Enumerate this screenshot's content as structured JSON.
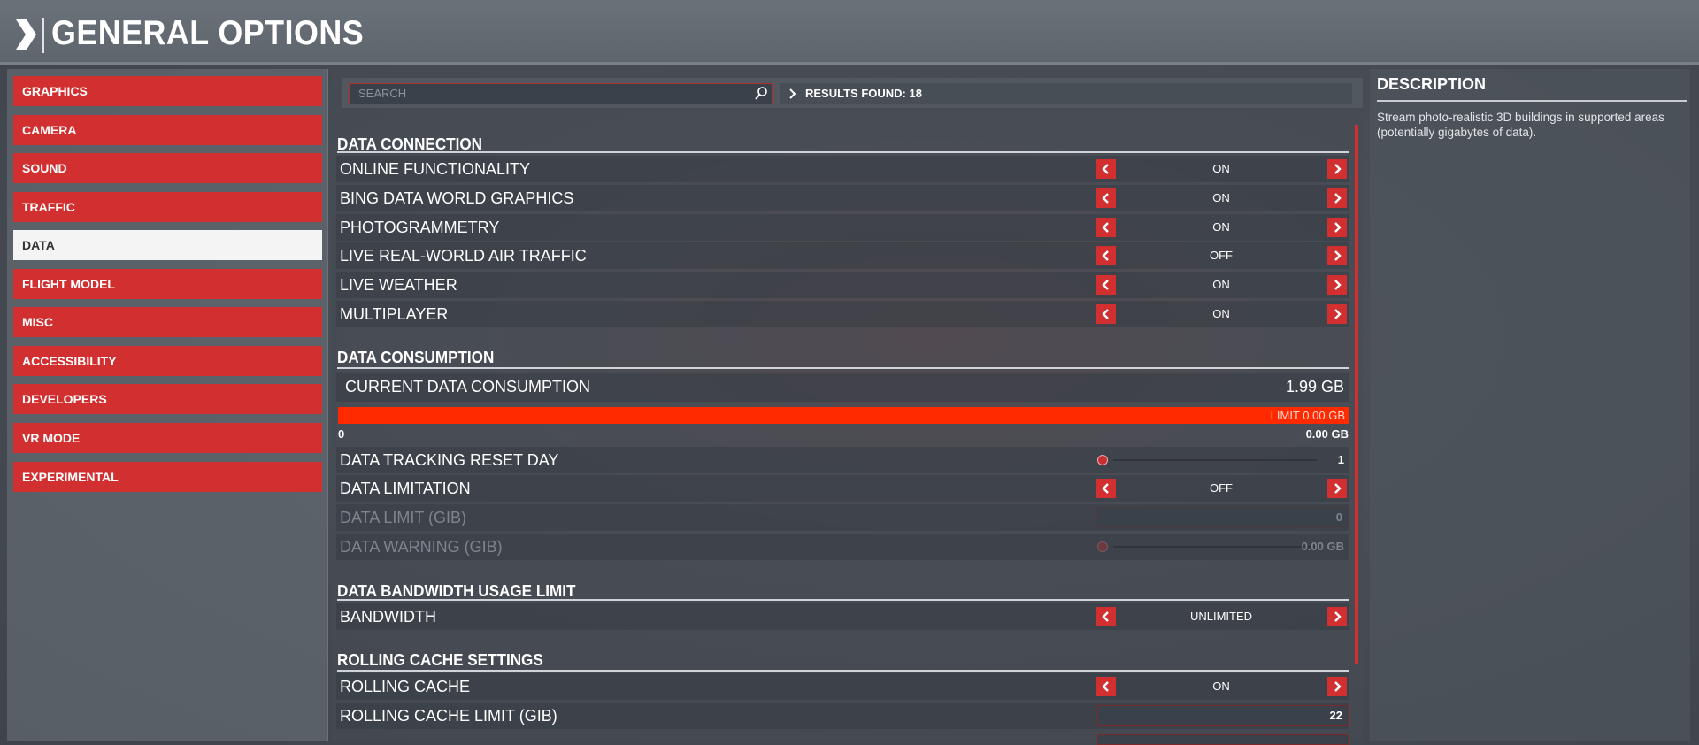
{
  "header": {
    "title": "GENERAL OPTIONS"
  },
  "sidebar": {
    "items": [
      {
        "label": "GRAPHICS",
        "active": false
      },
      {
        "label": "CAMERA",
        "active": false
      },
      {
        "label": "SOUND",
        "active": false
      },
      {
        "label": "TRAFFIC",
        "active": false
      },
      {
        "label": "DATA",
        "active": true
      },
      {
        "label": "FLIGHT MODEL",
        "active": false
      },
      {
        "label": "MISC",
        "active": false
      },
      {
        "label": "ACCESSIBILITY",
        "active": false
      },
      {
        "label": "DEVELOPERS",
        "active": false
      },
      {
        "label": "VR MODE",
        "active": false
      },
      {
        "label": "EXPERIMENTAL",
        "active": false
      }
    ]
  },
  "search": {
    "placeholder": "SEARCH",
    "results": "RESULTS FOUND: 18"
  },
  "colors": {
    "accent": "#d23030",
    "bar": "#ff2a00"
  },
  "sections": [
    {
      "title": "DATA CONNECTION",
      "rows": [
        {
          "type": "toggle",
          "label": "ONLINE FUNCTIONALITY",
          "value": "ON"
        },
        {
          "type": "toggle",
          "label": "BING DATA WORLD GRAPHICS",
          "value": "ON"
        },
        {
          "type": "toggle",
          "label": "PHOTOGRAMMETRY",
          "value": "ON"
        },
        {
          "type": "toggle",
          "label": "LIVE REAL-WORLD AIR TRAFFIC",
          "value": "OFF"
        },
        {
          "type": "toggle",
          "label": "LIVE WEATHER",
          "value": "ON"
        },
        {
          "type": "toggle",
          "label": "MULTIPLAYER",
          "value": "ON"
        }
      ]
    },
    {
      "title": "DATA CONSUMPTION",
      "rows": [
        {
          "type": "consumption",
          "label": "CURRENT DATA CONSUMPTION",
          "value": "1.99 GB",
          "limit": "LIMIT 0.00 GB",
          "min": "0",
          "max": "0.00 GB",
          "fill_percent": 100
        },
        {
          "type": "slider",
          "label": "DATA TRACKING RESET DAY",
          "value": "1"
        },
        {
          "type": "toggle",
          "label": "DATA LIMITATION",
          "value": "OFF"
        },
        {
          "type": "input",
          "label": "DATA LIMIT (GIB)",
          "value": "0",
          "disabled": true
        },
        {
          "type": "slider",
          "label": "DATA WARNING (GIB)",
          "value": "0.00 GB",
          "disabled": true
        }
      ]
    },
    {
      "title": "DATA BANDWIDTH USAGE LIMIT",
      "rows": [
        {
          "type": "toggle",
          "label": "BANDWIDTH",
          "value": "UNLIMITED"
        }
      ]
    },
    {
      "title": "ROLLING CACHE SETTINGS",
      "rows": [
        {
          "type": "toggle",
          "label": "ROLLING CACHE",
          "value": "ON"
        },
        {
          "type": "input",
          "label": "ROLLING CACHE LIMIT (GIB)",
          "value": "22"
        }
      ]
    }
  ],
  "description": {
    "title": "DESCRIPTION",
    "text": "Stream photo-realistic 3D buildings in supported areas (potentially gigabytes of data)."
  }
}
